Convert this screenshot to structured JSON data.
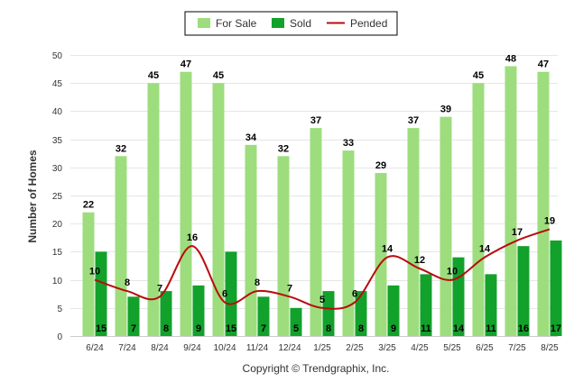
{
  "chart_data": {
    "type": "bar",
    "title": "",
    "xlabel": "",
    "ylabel": "Number of Homes",
    "ylim": [
      0,
      50
    ],
    "yticks": [
      0,
      5,
      10,
      15,
      20,
      25,
      30,
      35,
      40,
      45,
      50
    ],
    "grid": true,
    "legend_position": "top-center",
    "categories": [
      "6/24",
      "7/24",
      "8/24",
      "9/24",
      "10/24",
      "11/24",
      "12/24",
      "1/25",
      "2/25",
      "3/25",
      "4/25",
      "5/25",
      "6/25",
      "7/25",
      "8/25"
    ],
    "series": [
      {
        "name": "For Sale",
        "type": "bar",
        "color": "#9ddd7e",
        "values": [
          22,
          32,
          45,
          47,
          45,
          34,
          32,
          37,
          33,
          29,
          37,
          39,
          45,
          48,
          47
        ]
      },
      {
        "name": "Sold",
        "type": "bar",
        "color": "#12a12b",
        "values": [
          15,
          7,
          8,
          9,
          15,
          7,
          5,
          8,
          8,
          9,
          11,
          14,
          11,
          16,
          17
        ]
      },
      {
        "name": "Pended",
        "type": "line",
        "color": "#b80c0c",
        "values": [
          10,
          8,
          7,
          16,
          6,
          8,
          7,
          5,
          6,
          14,
          12,
          10,
          14,
          17,
          19
        ]
      }
    ]
  },
  "footer": {
    "copyright": "Copyright © Trendgraphix, Inc."
  }
}
